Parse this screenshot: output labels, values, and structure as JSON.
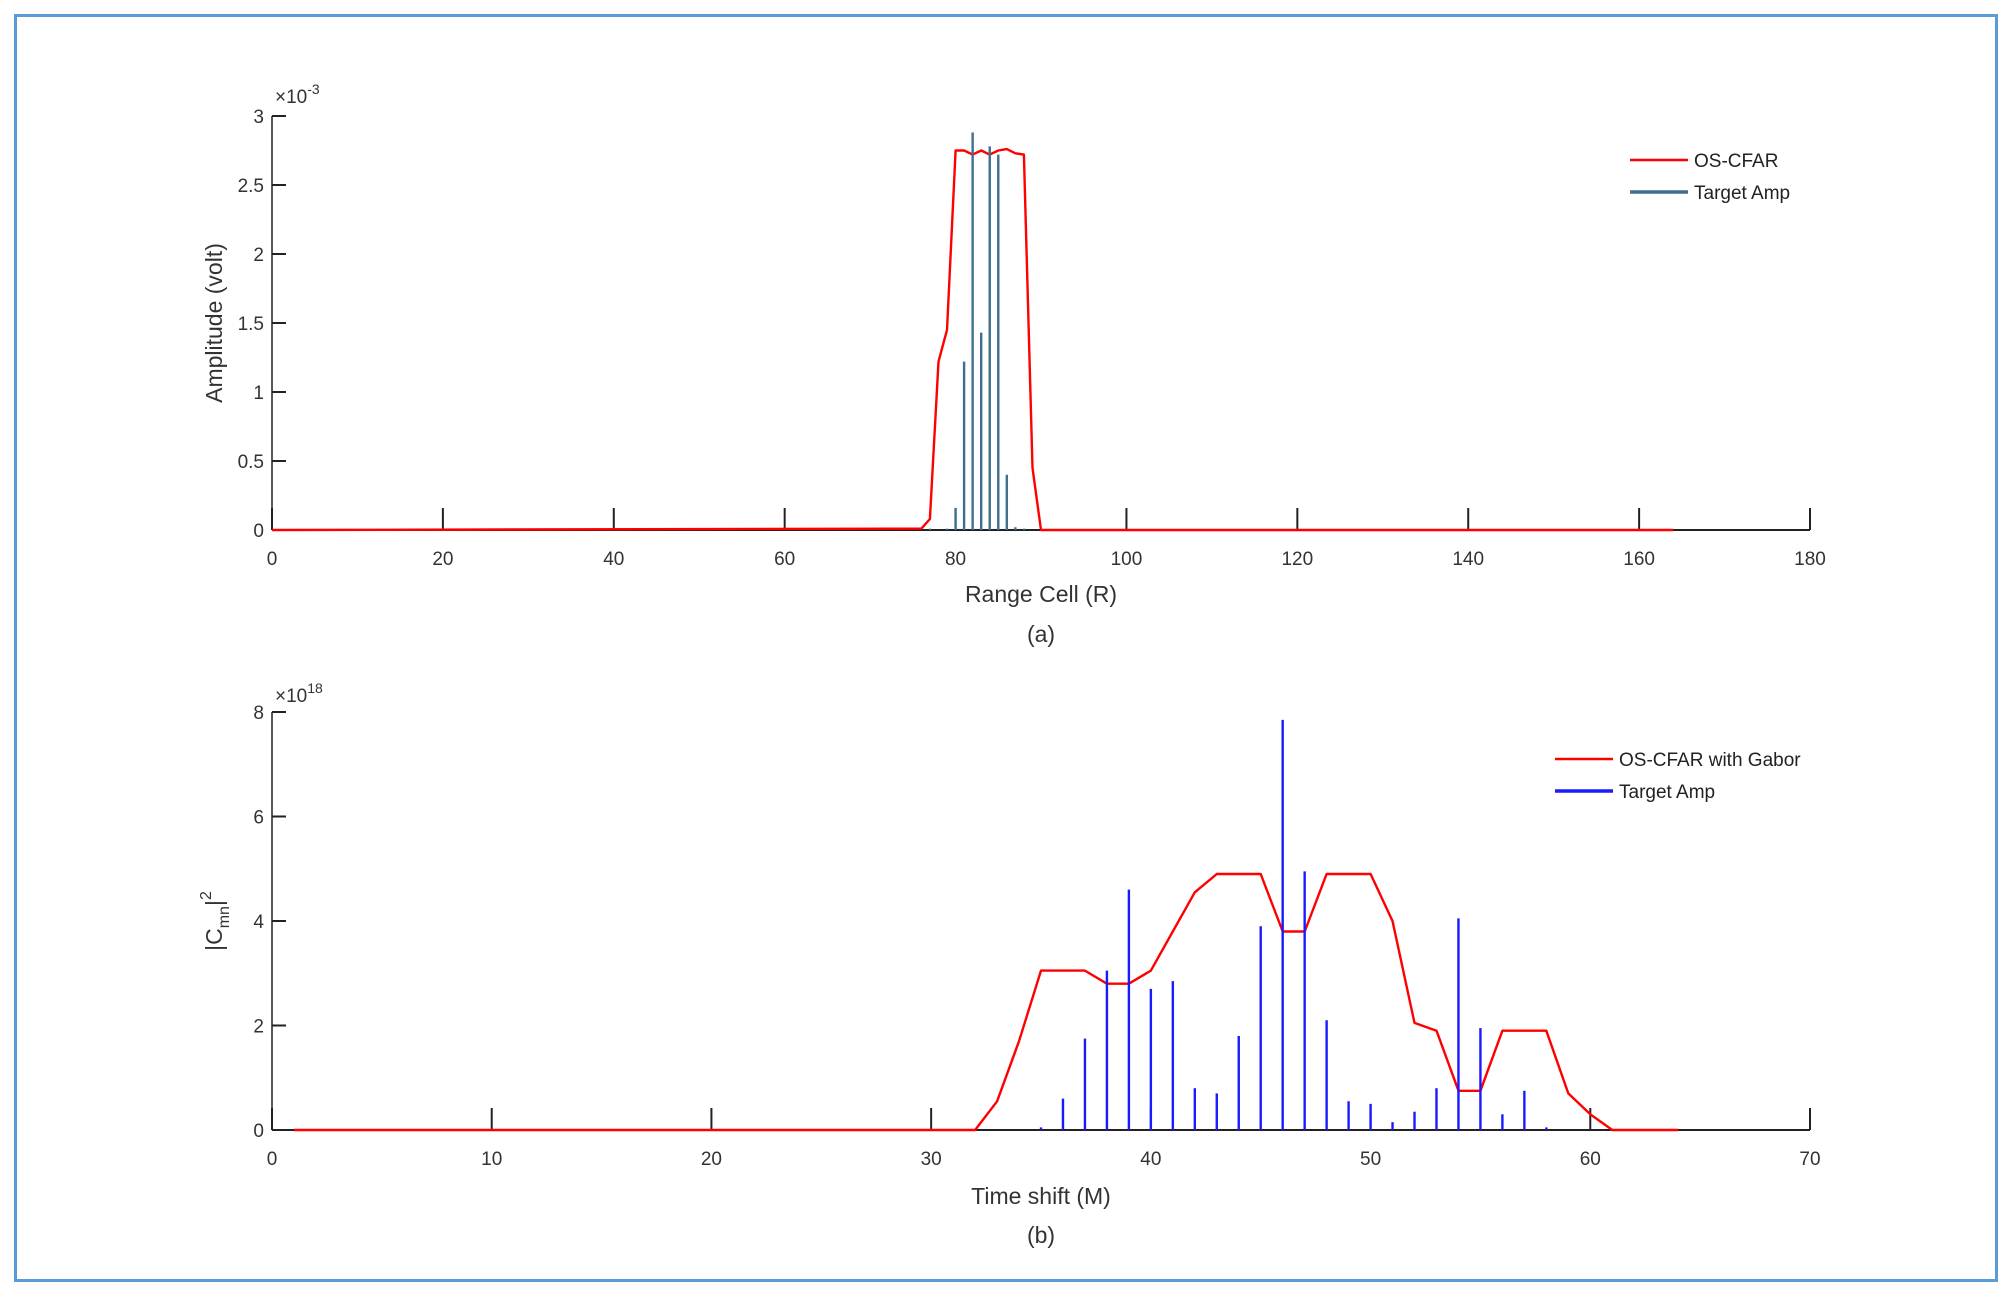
{
  "chart_data": [
    {
      "id": "a",
      "type": "line+stem",
      "caption": "(a)",
      "xlabel": "Range Cell (R)",
      "ylabel": "Amplitude (volt)",
      "y_exponent_label": "×10",
      "y_exponent_power": "-3",
      "xlim": [
        0,
        180
      ],
      "ylim": [
        0,
        3
      ],
      "xticks": [
        0,
        20,
        40,
        60,
        80,
        100,
        120,
        140,
        160,
        180
      ],
      "yticks": [
        0,
        0.5,
        1,
        1.5,
        2,
        2.5,
        3
      ],
      "ytick_labels": [
        "0",
        "0.5",
        "1",
        "1.5",
        "2",
        "2.5",
        "3"
      ],
      "grid": false,
      "legend_position": "top-right",
      "series": [
        {
          "name": "OS-CFAR",
          "kind": "line",
          "color": "#ff0000",
          "x": [
            0,
            76,
            77,
            78,
            79,
            80,
            81,
            82,
            83,
            84,
            85,
            86,
            87,
            88,
            89,
            90,
            164
          ],
          "y": [
            0,
            0.01,
            0.08,
            1.22,
            1.45,
            2.75,
            2.75,
            2.72,
            2.75,
            2.72,
            2.75,
            2.76,
            2.73,
            2.72,
            0.45,
            0,
            0
          ]
        },
        {
          "name": "Target Amp",
          "kind": "stem",
          "color": "#3f6f8f",
          "x": [
            77,
            79,
            80,
            81,
            82,
            83,
            84,
            85,
            86,
            87,
            88
          ],
          "y": [
            0.01,
            0.01,
            0.16,
            1.22,
            2.88,
            1.43,
            2.78,
            2.72,
            0.4,
            0.02,
            0.01
          ]
        }
      ]
    },
    {
      "id": "b",
      "type": "line+stem",
      "caption": "(b)",
      "xlabel": "Time shift (M)",
      "ylabel_main": "|C",
      "ylabel_sub": "mn",
      "ylabel_end": "|",
      "ylabel_sup": "2",
      "y_exponent_label": "×10",
      "y_exponent_power": "18",
      "xlim": [
        0,
        70
      ],
      "ylim": [
        0,
        8
      ],
      "xticks": [
        0,
        10,
        20,
        30,
        40,
        50,
        60,
        70
      ],
      "yticks": [
        0,
        2,
        4,
        6,
        8
      ],
      "ytick_labels": [
        "0",
        "2",
        "4",
        "6",
        "8"
      ],
      "grid": false,
      "legend_position": "top-right",
      "series": [
        {
          "name": "OS-CFAR with Gabor",
          "kind": "line",
          "color": "#ff0000",
          "x": [
            1,
            32,
            33,
            34,
            35,
            36,
            37,
            38,
            39,
            40,
            41,
            42,
            43,
            44,
            45,
            46,
            47,
            48,
            49,
            50,
            51,
            52,
            53,
            54,
            55,
            56,
            57,
            58,
            59,
            60,
            61,
            62,
            63,
            64
          ],
          "y": [
            0,
            0,
            0.55,
            1.7,
            3.05,
            3.05,
            3.05,
            2.8,
            2.8,
            3.05,
            3.8,
            4.55,
            4.9,
            4.9,
            4.9,
            3.8,
            3.8,
            4.9,
            4.9,
            4.9,
            4.0,
            2.05,
            1.9,
            0.75,
            0.75,
            1.9,
            1.9,
            1.9,
            0.7,
            0.3,
            0,
            0,
            0,
            0
          ]
        },
        {
          "name": "Target Amp",
          "kind": "stem",
          "color": "#1a1aff",
          "x": [
            35,
            36,
            37,
            38,
            39,
            40,
            41,
            42,
            43,
            44,
            45,
            46,
            47,
            48,
            49,
            50,
            51,
            52,
            53,
            54,
            55,
            56,
            57,
            58
          ],
          "y": [
            0.05,
            0.6,
            1.75,
            3.05,
            4.6,
            2.7,
            2.85,
            0.8,
            0.7,
            1.8,
            3.9,
            7.85,
            4.95,
            2.1,
            0.55,
            0.5,
            0.15,
            0.35,
            0.8,
            4.05,
            1.95,
            0.3,
            0.75,
            0.05
          ]
        }
      ]
    }
  ]
}
